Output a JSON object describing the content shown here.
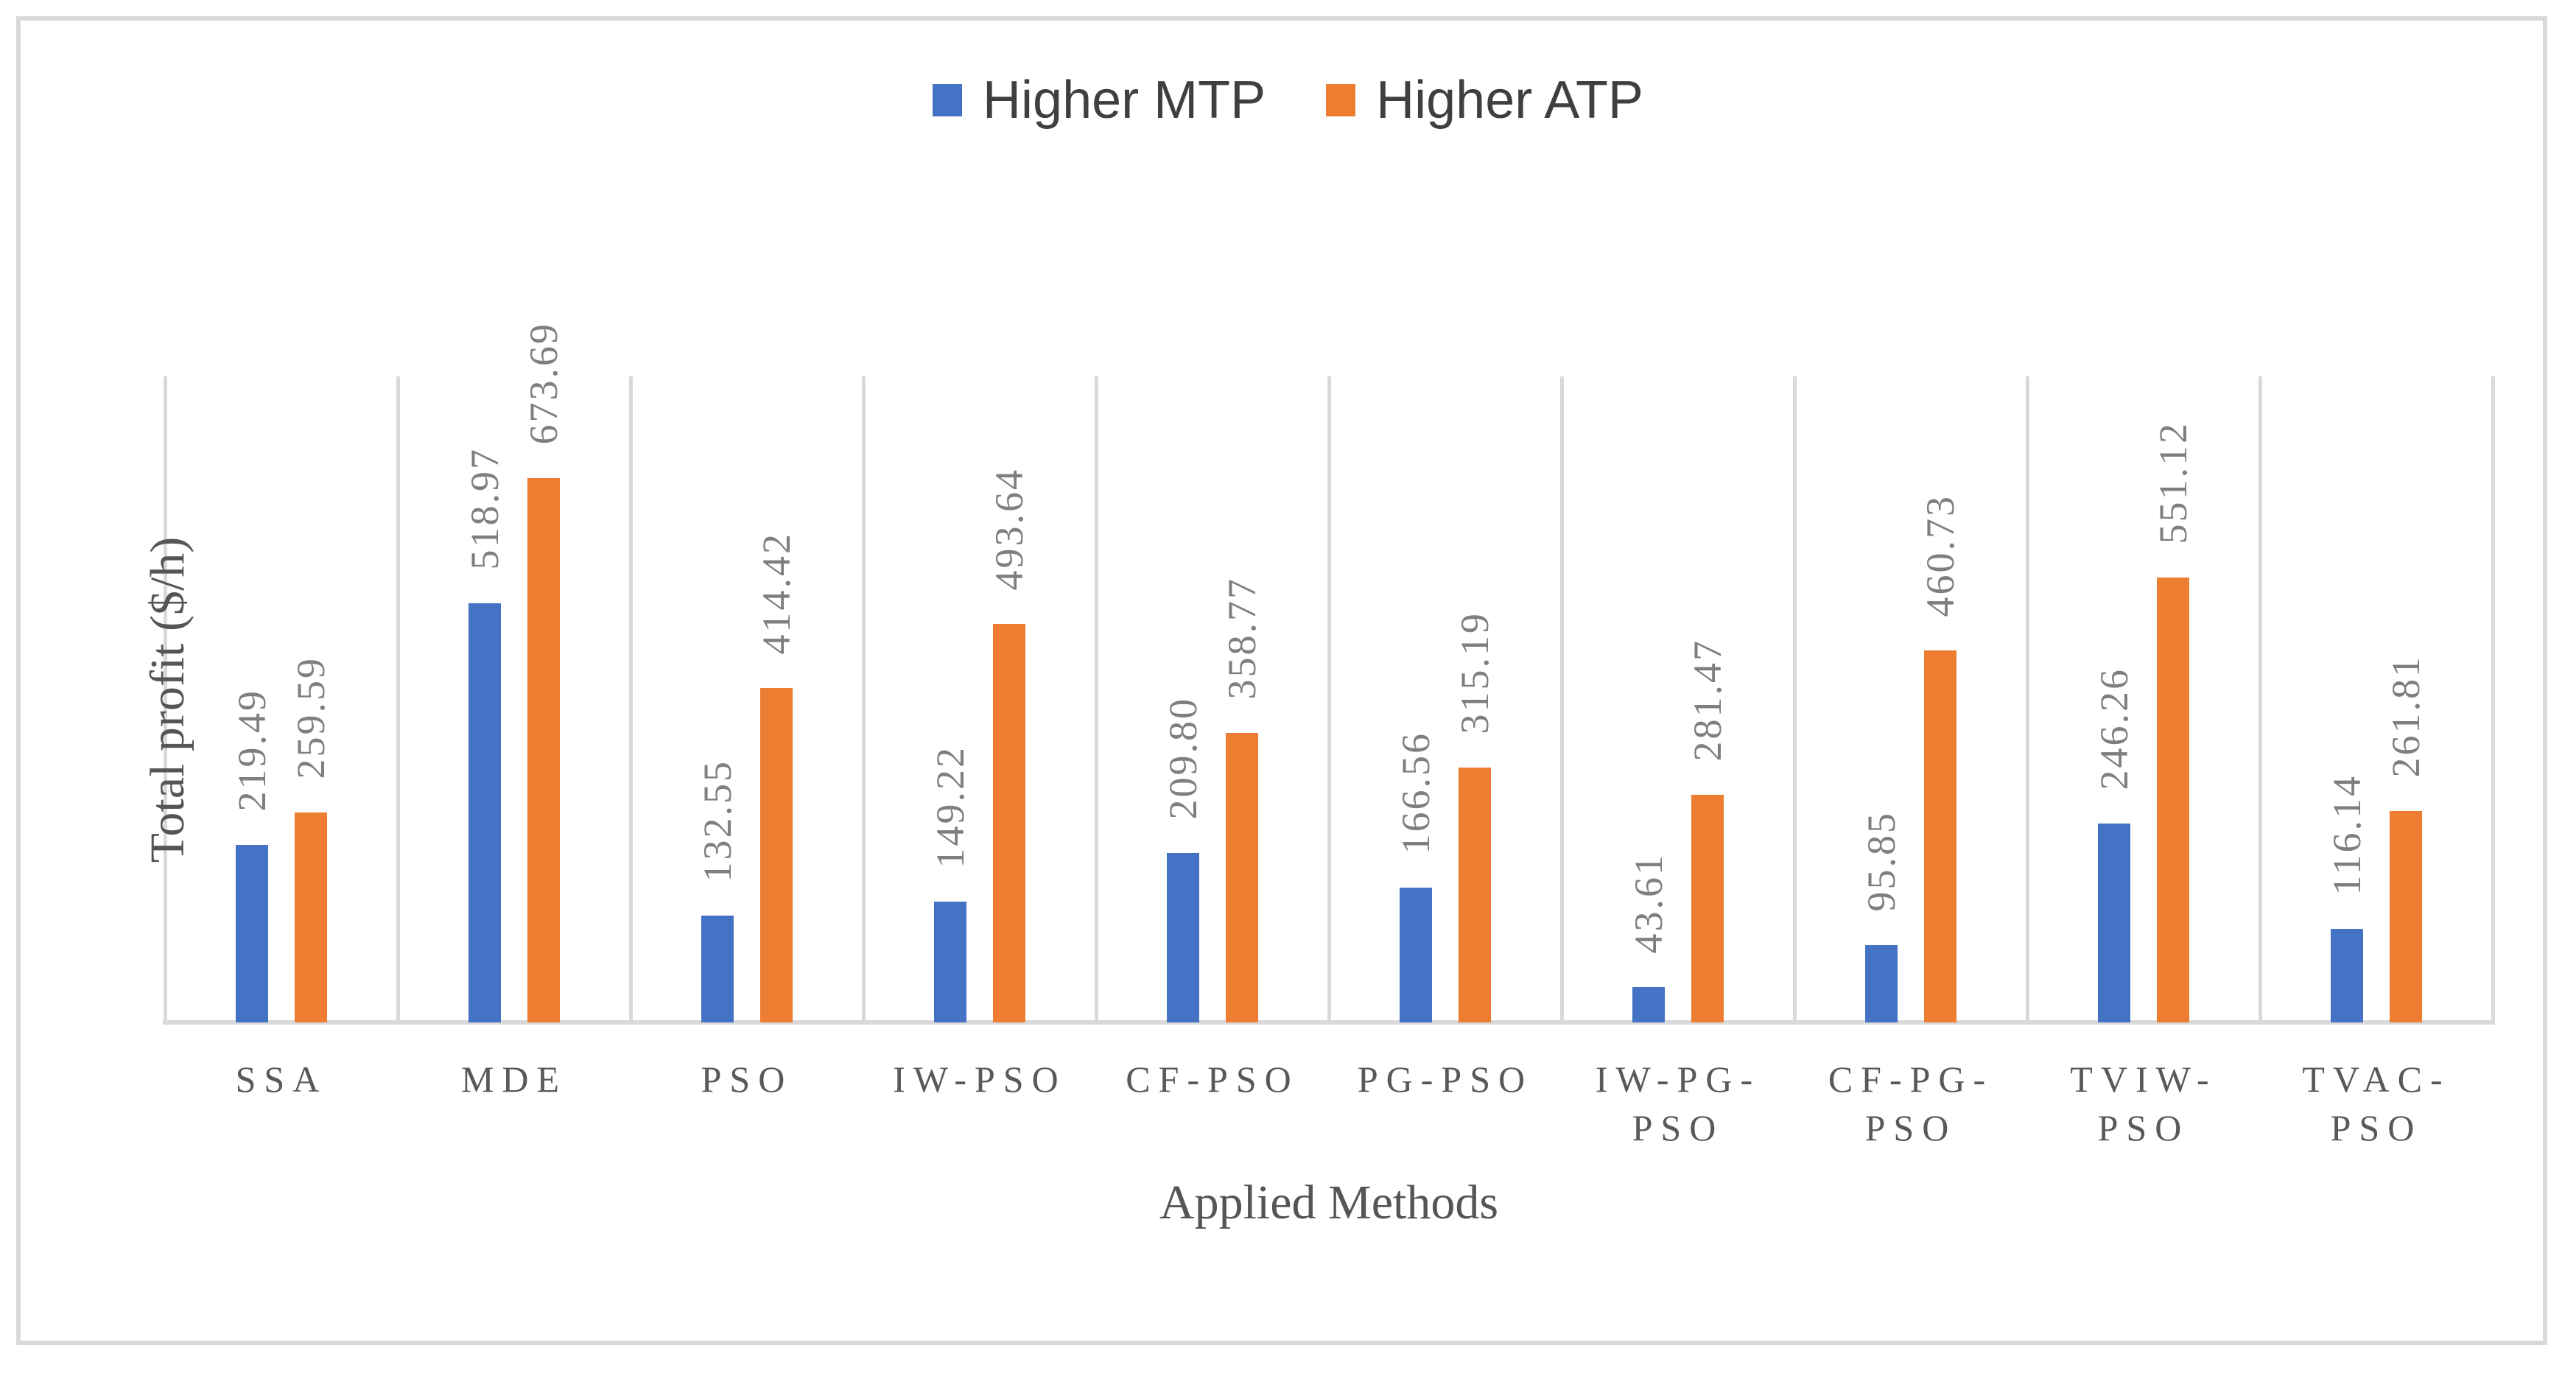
{
  "figure": {
    "background_color": "#FFFFFF",
    "border_color": "#D9D9D9"
  },
  "legend": {
    "position": "top-center",
    "items": [
      {
        "label": "Higher MTP",
        "color": "#4472C4"
      },
      {
        "label": "Higher ATP",
        "color": "#ED7D31"
      }
    ]
  },
  "chart_data": {
    "type": "bar",
    "title": "",
    "xlabel": "Applied Methods",
    "ylabel": "Total profit ($/h)",
    "ylim": [
      0,
      800
    ],
    "y_axis_labels_visible": false,
    "gridlines": "vertical category separators only",
    "legend_position": "top-center",
    "categories": [
      "SSA",
      "MDE",
      "PSO",
      "IW-PSO",
      "CF-PSO",
      "PG-PSO",
      "IW-PG-PSO",
      "CF-PG-PSO",
      "TVIW-PSO",
      "TVAC-PSO"
    ],
    "category_label_lines": [
      [
        "SSA"
      ],
      [
        "MDE"
      ],
      [
        "PSO"
      ],
      [
        "IW-PSO"
      ],
      [
        "CF-PSO"
      ],
      [
        "PG-PSO"
      ],
      [
        "IW-PG-",
        "PSO"
      ],
      [
        "CF-PG-",
        "PSO"
      ],
      [
        "TVIW-",
        "PSO"
      ],
      [
        "TVAC-",
        "PSO"
      ]
    ],
    "series": [
      {
        "name": "Higher MTP",
        "color": "#4472C4",
        "values": [
          219.49,
          518.97,
          132.55,
          149.22,
          209.8,
          166.56,
          43.61,
          95.85,
          246.26,
          116.14
        ],
        "value_labels": [
          "219.49",
          "518.97",
          "132.55",
          "149.22",
          "209.80",
          "166.56",
          "43.61",
          "95.85",
          "246.26",
          "116.14"
        ]
      },
      {
        "name": "Higher ATP",
        "color": "#ED7D31",
        "values": [
          259.59,
          673.69,
          414.42,
          493.64,
          358.77,
          315.19,
          281.47,
          460.73,
          551.12,
          261.81
        ],
        "value_labels": [
          "259.59",
          "673.69",
          "414.42",
          "493.64",
          "358.77",
          "315.19",
          "281.47",
          "460.73",
          "551.12",
          "261.81"
        ]
      }
    ],
    "data_labels": {
      "rotation_degrees": 90,
      "position": "outside-end",
      "color": "#7F7F7F"
    }
  },
  "colors": {
    "grid": "#D9D9D9",
    "axis_line": "#D9D9D9",
    "value_label_text": "#7F7F7F",
    "category_label_text": "#595959",
    "axis_title_text": "#555555",
    "legend_text": "#3F3F3F"
  }
}
